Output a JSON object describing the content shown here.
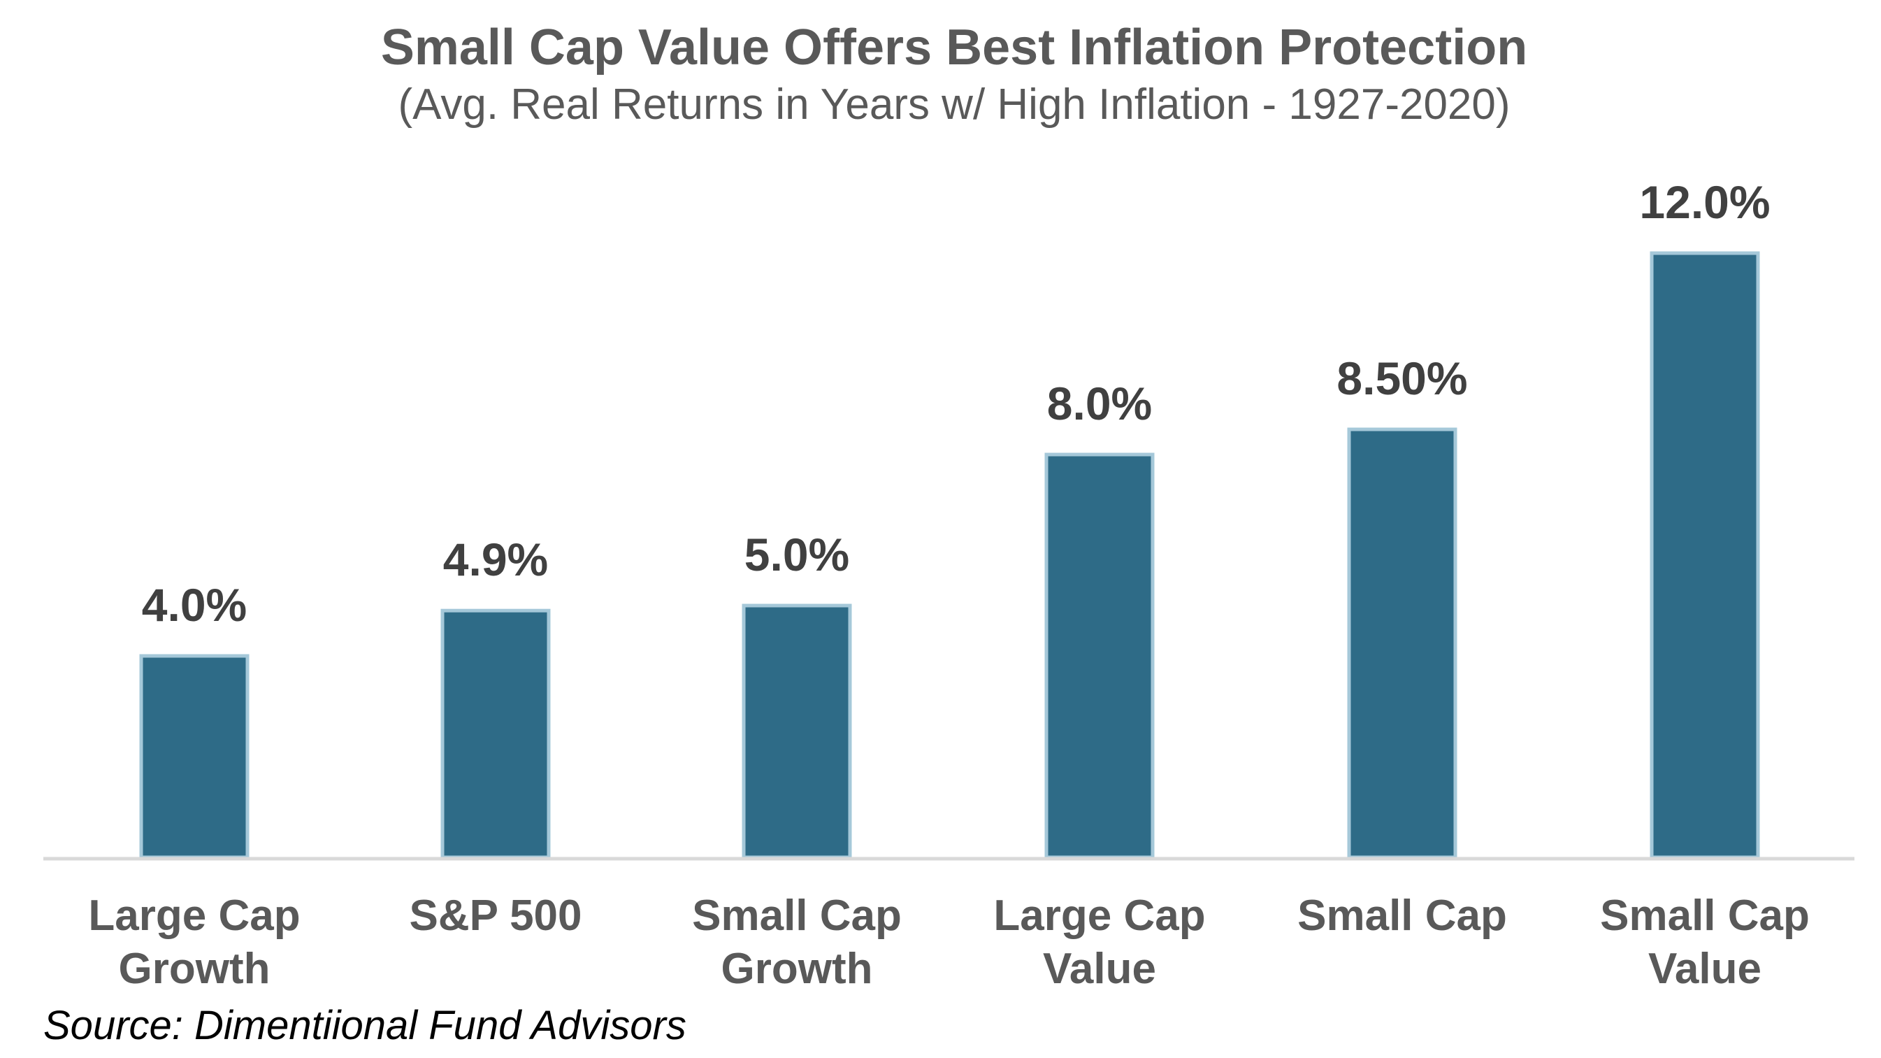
{
  "chart_data": {
    "type": "bar",
    "title": "Small Cap Value Offers Best Inflation Protection",
    "subtitle": "(Avg. Real Returns in Years w/ High Inflation - 1927-2020)",
    "categories": [
      [
        "Large Cap",
        "Growth"
      ],
      [
        "S&P 500"
      ],
      [
        "Small Cap",
        "Growth"
      ],
      [
        "Large Cap",
        "Value"
      ],
      [
        "Small Cap"
      ],
      [
        "Small Cap",
        "Value"
      ]
    ],
    "values": [
      4.0,
      4.9,
      5.0,
      8.0,
      8.5,
      12.0
    ],
    "data_labels": [
      "4.0%",
      "4.9%",
      "5.0%",
      "8.0%",
      "8.50%",
      "12.0%"
    ],
    "xlabel": "",
    "ylabel": "",
    "ylim": [
      0,
      12.5
    ],
    "grid": false,
    "legend": "none",
    "colors": {
      "bar_fill": "#2E6B87",
      "bar_border": "#A5C8D9",
      "axis": "#D9D9D9"
    }
  },
  "source": "Source: Dimentiional Fund Advisors"
}
